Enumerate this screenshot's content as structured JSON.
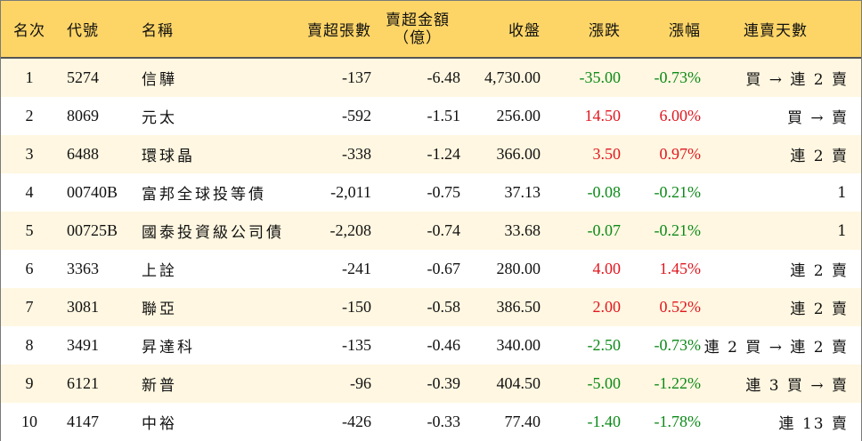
{
  "header": {
    "rank": "名次",
    "code": "代號",
    "name": "名稱",
    "net_sell_lots": "賣超張數",
    "net_sell_amount_line1": "賣超金額",
    "net_sell_amount_line2": "（億）",
    "close": "收盤",
    "change": "漲跌",
    "change_pct": "漲幅",
    "consecutive_days": "連賣天數"
  },
  "colors": {
    "header_bg": "#fdd567",
    "odd_row_bg": "#fff7e1",
    "up": "#e0171f",
    "down": "#0d8a19"
  },
  "rows": [
    {
      "rank": "1",
      "code": "5274",
      "name": "信驊",
      "lots": "-137",
      "amount": "-6.48",
      "close": "4,730.00",
      "change": "-35.00",
      "pct": "-0.73%",
      "dir": "down",
      "days": "買 → 連 2 賣"
    },
    {
      "rank": "2",
      "code": "8069",
      "name": "元太",
      "lots": "-592",
      "amount": "-1.51",
      "close": "256.00",
      "change": "14.50",
      "pct": "6.00%",
      "dir": "up",
      "days": "買 → 賣"
    },
    {
      "rank": "3",
      "code": "6488",
      "name": "環球晶",
      "lots": "-338",
      "amount": "-1.24",
      "close": "366.00",
      "change": "3.50",
      "pct": "0.97%",
      "dir": "up",
      "days": "連 2 賣"
    },
    {
      "rank": "4",
      "code": "00740B",
      "name": "富邦全球投等債",
      "lots": "-2,011",
      "amount": "-0.75",
      "close": "37.13",
      "change": "-0.08",
      "pct": "-0.21%",
      "dir": "down",
      "days": "1"
    },
    {
      "rank": "5",
      "code": "00725B",
      "name": "國泰投資級公司債",
      "lots": "-2,208",
      "amount": "-0.74",
      "close": "33.68",
      "change": "-0.07",
      "pct": "-0.21%",
      "dir": "down",
      "days": "1"
    },
    {
      "rank": "6",
      "code": "3363",
      "name": "上詮",
      "lots": "-241",
      "amount": "-0.67",
      "close": "280.00",
      "change": "4.00",
      "pct": "1.45%",
      "dir": "up",
      "days": "連 2 賣"
    },
    {
      "rank": "7",
      "code": "3081",
      "name": "聯亞",
      "lots": "-150",
      "amount": "-0.58",
      "close": "386.50",
      "change": "2.00",
      "pct": "0.52%",
      "dir": "up",
      "days": "連 2 賣"
    },
    {
      "rank": "8",
      "code": "3491",
      "name": "昇達科",
      "lots": "-135",
      "amount": "-0.46",
      "close": "340.00",
      "change": "-2.50",
      "pct": "-0.73%",
      "dir": "down",
      "days": "連 2 買 → 連 2 賣"
    },
    {
      "rank": "9",
      "code": "6121",
      "name": "新普",
      "lots": "-96",
      "amount": "-0.39",
      "close": "404.50",
      "change": "-5.00",
      "pct": "-1.22%",
      "dir": "down",
      "days": "連 3 買 → 賣"
    },
    {
      "rank": "10",
      "code": "4147",
      "name": "中裕",
      "lots": "-426",
      "amount": "-0.33",
      "close": "77.40",
      "change": "-1.40",
      "pct": "-1.78%",
      "dir": "down",
      "days": "連 13 賣"
    }
  ]
}
